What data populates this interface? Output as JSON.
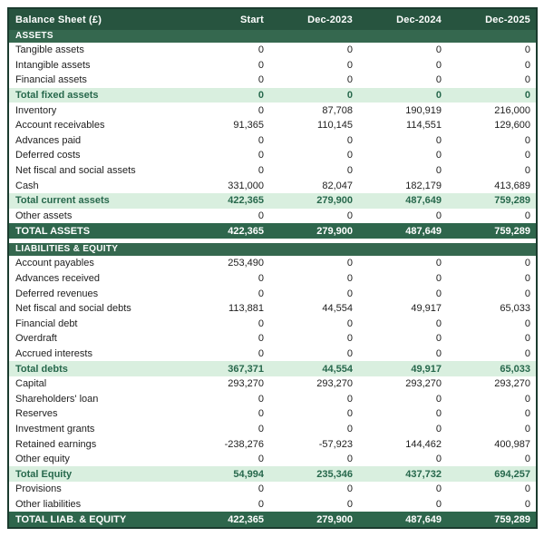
{
  "colors": {
    "header_bg": "#27543F",
    "section_bg": "#35684F",
    "grand_bg": "#2E664C",
    "subtotal_bg": "#D9EFDF",
    "subtotal_text": "#27684C",
    "header_text": "#FFFFFF",
    "body_text": "#1E1E1E",
    "border": "#1B3B2E",
    "page_bg": "#FFFFFF"
  },
  "table": {
    "header": {
      "label": "Balance Sheet (£)",
      "columns": [
        "Start",
        "Dec-2023",
        "Dec-2024",
        "Dec-2025"
      ]
    },
    "sections": [
      {
        "title": "ASSETS",
        "rows": [
          {
            "label": "Tangible assets",
            "values": [
              "0",
              "0",
              "0",
              "0"
            ],
            "style": "normal"
          },
          {
            "label": "Intangible assets",
            "values": [
              "0",
              "0",
              "0",
              "0"
            ],
            "style": "normal"
          },
          {
            "label": "Financial assets",
            "values": [
              "0",
              "0",
              "0",
              "0"
            ],
            "style": "normal"
          },
          {
            "label": "Total fixed assets",
            "values": [
              "0",
              "0",
              "0",
              "0"
            ],
            "style": "sub"
          },
          {
            "label": "Inventory",
            "values": [
              "0",
              "87,708",
              "190,919",
              "216,000"
            ],
            "style": "normal"
          },
          {
            "label": "Account receivables",
            "values": [
              "91,365",
              "110,145",
              "114,551",
              "129,600"
            ],
            "style": "normal"
          },
          {
            "label": "Advances paid",
            "values": [
              "0",
              "0",
              "0",
              "0"
            ],
            "style": "normal"
          },
          {
            "label": "Deferred costs",
            "values": [
              "0",
              "0",
              "0",
              "0"
            ],
            "style": "normal"
          },
          {
            "label": "Net fiscal and social assets",
            "values": [
              "0",
              "0",
              "0",
              "0"
            ],
            "style": "normal"
          },
          {
            "label": "Cash",
            "values": [
              "331,000",
              "82,047",
              "182,179",
              "413,689"
            ],
            "style": "normal"
          },
          {
            "label": "Total current assets",
            "values": [
              "422,365",
              "279,900",
              "487,649",
              "759,289"
            ],
            "style": "sub"
          },
          {
            "label": "Other assets",
            "values": [
              "0",
              "0",
              "0",
              "0"
            ],
            "style": "normal"
          },
          {
            "label": "TOTAL ASSETS",
            "values": [
              "422,365",
              "279,900",
              "487,649",
              "759,289"
            ],
            "style": "grand"
          }
        ]
      },
      {
        "title": "LIABILITIES & EQUITY",
        "rows": [
          {
            "label": "Account payables",
            "values": [
              "253,490",
              "0",
              "0",
              "0"
            ],
            "style": "normal"
          },
          {
            "label": "Advances received",
            "values": [
              "0",
              "0",
              "0",
              "0"
            ],
            "style": "normal"
          },
          {
            "label": "Deferred revenues",
            "values": [
              "0",
              "0",
              "0",
              "0"
            ],
            "style": "normal"
          },
          {
            "label": "Net fiscal and social debts",
            "values": [
              "113,881",
              "44,554",
              "49,917",
              "65,033"
            ],
            "style": "normal"
          },
          {
            "label": "Financial debt",
            "values": [
              "0",
              "0",
              "0",
              "0"
            ],
            "style": "normal"
          },
          {
            "label": "Overdraft",
            "values": [
              "0",
              "0",
              "0",
              "0"
            ],
            "style": "normal"
          },
          {
            "label": "Accrued interests",
            "values": [
              "0",
              "0",
              "0",
              "0"
            ],
            "style": "normal"
          },
          {
            "label": "Total debts",
            "values": [
              "367,371",
              "44,554",
              "49,917",
              "65,033"
            ],
            "style": "sub"
          },
          {
            "label": "Capital",
            "values": [
              "293,270",
              "293,270",
              "293,270",
              "293,270"
            ],
            "style": "normal"
          },
          {
            "label": "Shareholders' loan",
            "values": [
              "0",
              "0",
              "0",
              "0"
            ],
            "style": "normal"
          },
          {
            "label": "Reserves",
            "values": [
              "0",
              "0",
              "0",
              "0"
            ],
            "style": "normal"
          },
          {
            "label": "Investment grants",
            "values": [
              "0",
              "0",
              "0",
              "0"
            ],
            "style": "normal"
          },
          {
            "label": "Retained earnings",
            "values": [
              "-238,276",
              "-57,923",
              "144,462",
              "400,987"
            ],
            "style": "normal"
          },
          {
            "label": "Other equity",
            "values": [
              "0",
              "0",
              "0",
              "0"
            ],
            "style": "normal"
          },
          {
            "label": "Total Equity",
            "values": [
              "54,994",
              "235,346",
              "437,732",
              "694,257"
            ],
            "style": "sub"
          },
          {
            "label": "Provisions",
            "values": [
              "0",
              "0",
              "0",
              "0"
            ],
            "style": "normal"
          },
          {
            "label": "Other liabilities",
            "values": [
              "0",
              "0",
              "0",
              "0"
            ],
            "style": "normal"
          },
          {
            "label": "TOTAL LIAB. & EQUITY",
            "values": [
              "422,365",
              "279,900",
              "487,649",
              "759,289"
            ],
            "style": "grand"
          }
        ]
      }
    ]
  }
}
